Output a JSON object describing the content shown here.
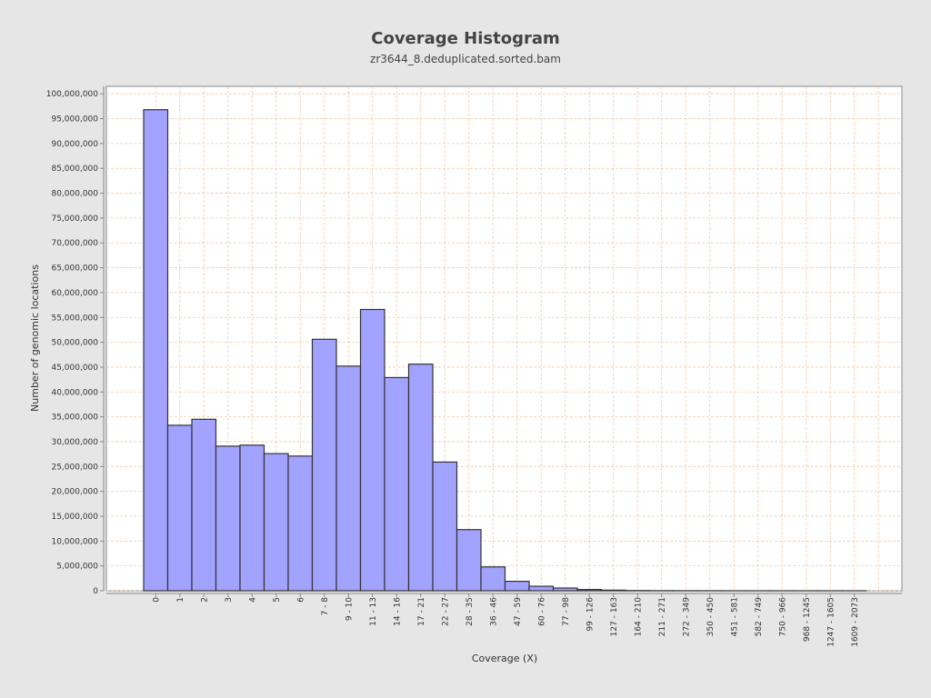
{
  "chart_data": {
    "type": "bar",
    "title": "Coverage Histogram",
    "subtitle": "zr3644_8.deduplicated.sorted.bam",
    "xlabel": "Coverage (X)",
    "ylabel": "Number of genomic locations",
    "ylim": [
      0,
      101500000
    ],
    "yticks": [
      0,
      5000000,
      10000000,
      15000000,
      20000000,
      25000000,
      30000000,
      35000000,
      40000000,
      45000000,
      50000000,
      55000000,
      60000000,
      65000000,
      70000000,
      75000000,
      80000000,
      85000000,
      90000000,
      95000000,
      100000000
    ],
    "grid": true,
    "categories": [
      "0",
      "1",
      "2",
      "3",
      "4",
      "5",
      "6",
      "7 - 8",
      "9 - 10",
      "11 - 13",
      "14 - 16",
      "17 - 21",
      "22 - 27",
      "28 - 35",
      "36 - 46",
      "47 - 59",
      "60 - 76",
      "77 - 98",
      "99 - 126",
      "127 - 163",
      "164 - 210",
      "211 - 271",
      "272 - 349",
      "350 - 450",
      "451 - 581",
      "582 - 749",
      "750 - 966",
      "968 - 1245",
      "1247 - 1605",
      "1609 - 2073"
    ],
    "values": [
      96800000,
      33300000,
      34500000,
      29100000,
      29300000,
      27600000,
      27100000,
      50600000,
      45200000,
      56600000,
      42900000,
      45600000,
      25900000,
      12300000,
      4800000,
      1900000,
      900000,
      550000,
      250000,
      120000,
      40000,
      20000,
      10000,
      6000,
      4000,
      2000,
      1000,
      500,
      200,
      100
    ],
    "colors": {
      "bar_fill": "#a2a2ff",
      "bar_stroke": "#333333",
      "grid": "#f0c8a8",
      "plot_bg": "#ffffff",
      "page_bg": "#e6e6e6"
    }
  }
}
